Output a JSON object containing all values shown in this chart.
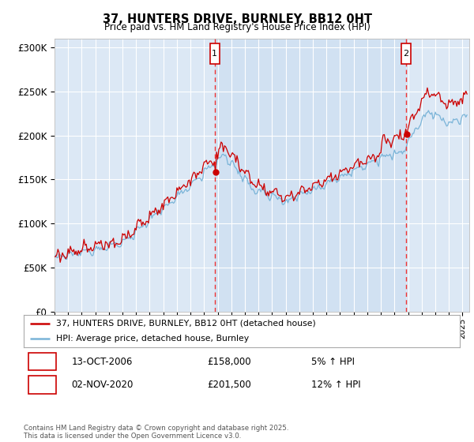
{
  "title": "37, HUNTERS DRIVE, BURNLEY, BB12 0HT",
  "subtitle": "Price paid vs. HM Land Registry's House Price Index (HPI)",
  "red_label": "37, HUNTERS DRIVE, BURNLEY, BB12 0HT (detached house)",
  "blue_label": "HPI: Average price, detached house, Burnley",
  "purchase1_date": "13-OCT-2006",
  "purchase1_price": 158000,
  "purchase1_hpi": "5% ↑ HPI",
  "purchase2_date": "02-NOV-2020",
  "purchase2_price": 201500,
  "purchase2_hpi": "12% ↑ HPI",
  "vline1_year": 2006.78,
  "vline2_year": 2020.84,
  "copyright": "Contains HM Land Registry data © Crown copyright and database right 2025.\nThis data is licensed under the Open Government Licence v3.0.",
  "ylim": [
    0,
    310000
  ],
  "yticks": [
    0,
    50000,
    100000,
    150000,
    200000,
    250000,
    300000
  ],
  "ytick_labels": [
    "£0",
    "£50K",
    "£100K",
    "£150K",
    "£200K",
    "£250K",
    "£300K"
  ],
  "plot_bg_color": "#dce8f5",
  "grid_color": "#ffffff",
  "red_color": "#cc0000",
  "blue_color": "#7ab4d8",
  "vline_color": "#ee3333",
  "shade_color": "#c8dcf0",
  "box_border_color": "#cc0000",
  "start_year": 1995,
  "end_year": 2025.5
}
